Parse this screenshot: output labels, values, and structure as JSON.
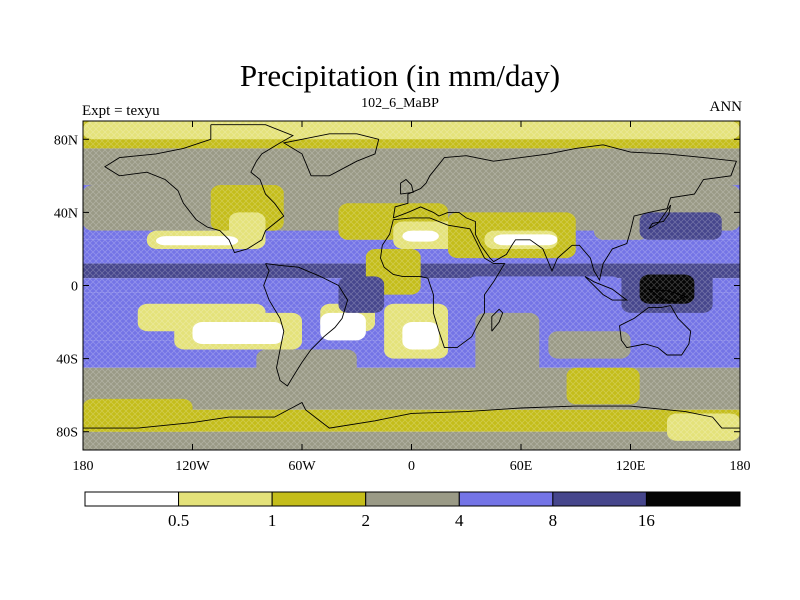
{
  "title": "Precipitation (in mm/day)",
  "subtitle": "102_6_MaBP",
  "left_label": "Expt = texyu",
  "right_label": "ANN",
  "colors": {
    "bin0": "#ffffff",
    "bin1": "#e4e27a",
    "bin2": "#c4bd1a",
    "bin3": "#9a9a86",
    "bin4": "#7474e6",
    "bin5": "#46468c",
    "bin6": "#050505"
  },
  "map": {
    "lon_range": [
      -180,
      180
    ],
    "lat_range": [
      -90,
      90
    ],
    "lon_ticks": [
      {
        "value": -180,
        "label": "180"
      },
      {
        "value": -120,
        "label": "120W"
      },
      {
        "value": -60,
        "label": "60W"
      },
      {
        "value": 0,
        "label": "0"
      },
      {
        "value": 60,
        "label": "60E"
      },
      {
        "value": 120,
        "label": "120E"
      },
      {
        "value": 180,
        "label": "180"
      }
    ],
    "lat_ticks": [
      {
        "value": 80,
        "label": "80N"
      },
      {
        "value": 40,
        "label": "40N"
      },
      {
        "value": 0,
        "label": "0"
      },
      {
        "value": -40,
        "label": "40S"
      },
      {
        "value": -80,
        "label": "80S"
      }
    ],
    "zonal_bands": [
      {
        "lat": [
          75,
          90
        ],
        "level": 2
      },
      {
        "lat": [
          55,
          75
        ],
        "level": 3
      },
      {
        "lat": [
          42,
          55
        ],
        "level": 4
      },
      {
        "lat": [
          25,
          42
        ],
        "level": 4
      },
      {
        "lat": [
          12,
          25
        ],
        "level": 4
      },
      {
        "lat": [
          4,
          12
        ],
        "level": 5
      },
      {
        "lat": [
          -4,
          4
        ],
        "level": 4
      },
      {
        "lat": [
          -12,
          -4
        ],
        "level": 4
      },
      {
        "lat": [
          -30,
          -12
        ],
        "level": 4
      },
      {
        "lat": [
          -45,
          -30
        ],
        "level": 4
      },
      {
        "lat": [
          -55,
          -45
        ],
        "level": 3
      },
      {
        "lat": [
          -68,
          -55
        ],
        "level": 3
      },
      {
        "lat": [
          -80,
          -68
        ],
        "level": 2
      },
      {
        "lat": [
          -90,
          -80
        ],
        "level": 3
      }
    ],
    "regions": [
      {
        "lon": [
          -180,
          180
        ],
        "lat": [
          30,
          55
        ],
        "level": 3
      },
      {
        "lon": [
          -110,
          -70
        ],
        "lat": [
          30,
          55
        ],
        "level": 2
      },
      {
        "lon": [
          -100,
          -80
        ],
        "lat": [
          20,
          40
        ],
        "level": 1
      },
      {
        "lon": [
          -145,
          -85
        ],
        "lat": [
          20,
          30
        ],
        "level": 1
      },
      {
        "lon": [
          -140,
          -95
        ],
        "lat": [
          22,
          27
        ],
        "level": 0
      },
      {
        "lon": [
          -40,
          20
        ],
        "lat": [
          25,
          45
        ],
        "level": 2
      },
      {
        "lon": [
          -10,
          30
        ],
        "lat": [
          20,
          35
        ],
        "level": 1
      },
      {
        "lon": [
          -5,
          15
        ],
        "lat": [
          24,
          30
        ],
        "level": 0
      },
      {
        "lon": [
          20,
          90
        ],
        "lat": [
          15,
          40
        ],
        "level": 2
      },
      {
        "lon": [
          40,
          80
        ],
        "lat": [
          20,
          30
        ],
        "level": 1
      },
      {
        "lon": [
          45,
          80
        ],
        "lat": [
          22,
          28
        ],
        "level": 0
      },
      {
        "lon": [
          100,
          130
        ],
        "lat": [
          25,
          40
        ],
        "level": 3
      },
      {
        "lon": [
          125,
          170
        ],
        "lat": [
          25,
          40
        ],
        "level": 5
      },
      {
        "lon": [
          115,
          165
        ],
        "lat": [
          -15,
          10
        ],
        "level": 5
      },
      {
        "lon": [
          125,
          155
        ],
        "lat": [
          -10,
          6
        ],
        "level": 6
      },
      {
        "lon": [
          30,
          115
        ],
        "lat": [
          -15,
          5
        ],
        "level": 4
      },
      {
        "lon": [
          -150,
          -80
        ],
        "lat": [
          -25,
          -10
        ],
        "level": 1
      },
      {
        "lon": [
          -130,
          -60
        ],
        "lat": [
          -35,
          -15
        ],
        "level": 1
      },
      {
        "lon": [
          -120,
          -70
        ],
        "lat": [
          -32,
          -20
        ],
        "level": 0
      },
      {
        "lon": [
          -50,
          -20
        ],
        "lat": [
          -25,
          -10
        ],
        "level": 1
      },
      {
        "lon": [
          -15,
          20
        ],
        "lat": [
          -40,
          -10
        ],
        "level": 1
      },
      {
        "lon": [
          -5,
          15
        ],
        "lat": [
          -35,
          -20
        ],
        "level": 0
      },
      {
        "lon": [
          -50,
          -25
        ],
        "lat": [
          -30,
          -15
        ],
        "level": 0
      },
      {
        "lon": [
          -25,
          5
        ],
        "lat": [
          -5,
          20
        ],
        "level": 2
      },
      {
        "lon": [
          -40,
          -15
        ],
        "lat": [
          -15,
          5
        ],
        "level": 5
      },
      {
        "lon": [
          35,
          70
        ],
        "lat": [
          -50,
          -15
        ],
        "level": 3
      },
      {
        "lon": [
          75,
          120
        ],
        "lat": [
          -40,
          -25
        ],
        "level": 3
      },
      {
        "lon": [
          85,
          125
        ],
        "lat": [
          -65,
          -45
        ],
        "level": 2
      },
      {
        "lon": [
          -85,
          -30
        ],
        "lat": [
          -62,
          -35
        ],
        "level": 3
      },
      {
        "lon": [
          -180,
          -120
        ],
        "lat": [
          -80,
          -62
        ],
        "level": 2
      },
      {
        "lon": [
          140,
          180
        ],
        "lat": [
          -85,
          -70
        ],
        "level": 1
      },
      {
        "lon": [
          -180,
          180
        ],
        "lat": [
          80,
          90
        ],
        "level": 1
      }
    ],
    "coastlines": [
      [
        [
          -110,
          88
        ],
        [
          -80,
          88
        ],
        [
          -65,
          82
        ],
        [
          -72,
          78
        ],
        [
          -82,
          72
        ],
        [
          -85,
          68
        ],
        [
          -88,
          62
        ],
        [
          -83,
          58
        ],
        [
          -80,
          50
        ],
        [
          -75,
          45
        ],
        [
          -70,
          38
        ],
        [
          -80,
          30
        ],
        [
          -82,
          25
        ],
        [
          -90,
          20
        ],
        [
          -97,
          18
        ],
        [
          -100,
          25
        ],
        [
          -105,
          30
        ],
        [
          -112,
          32
        ],
        [
          -118,
          36
        ],
        [
          -125,
          45
        ],
        [
          -128,
          52
        ],
        [
          -135,
          58
        ],
        [
          -145,
          62
        ],
        [
          -160,
          60
        ],
        [
          -168,
          65
        ],
        [
          -160,
          70
        ],
        [
          -140,
          72
        ],
        [
          -125,
          75
        ],
        [
          -110,
          80
        ],
        [
          -110,
          88
        ]
      ],
      [
        [
          -80,
          12
        ],
        [
          -72,
          11
        ],
        [
          -62,
          10
        ],
        [
          -50,
          5
        ],
        [
          -40,
          0
        ],
        [
          -35,
          -8
        ],
        [
          -38,
          -18
        ],
        [
          -42,
          -23
        ],
        [
          -48,
          -28
        ],
        [
          -55,
          -35
        ],
        [
          -60,
          -42
        ],
        [
          -65,
          -50
        ],
        [
          -68,
          -55
        ],
        [
          -72,
          -52
        ],
        [
          -74,
          -45
        ],
        [
          -72,
          -35
        ],
        [
          -70,
          -25
        ],
        [
          -72,
          -18
        ],
        [
          -78,
          -8
        ],
        [
          -81,
          0
        ],
        [
          -78,
          8
        ],
        [
          -80,
          12
        ]
      ],
      [
        [
          -10,
          36
        ],
        [
          0,
          37
        ],
        [
          10,
          37
        ],
        [
          20,
          33
        ],
        [
          32,
          31
        ],
        [
          35,
          25
        ],
        [
          40,
          15
        ],
        [
          45,
          12
        ],
        [
          51,
          12
        ],
        [
          45,
          2
        ],
        [
          40,
          -5
        ],
        [
          40,
          -15
        ],
        [
          36,
          -22
        ],
        [
          33,
          -28
        ],
        [
          25,
          -34
        ],
        [
          18,
          -34
        ],
        [
          15,
          -25
        ],
        [
          12,
          -15
        ],
        [
          12,
          -5
        ],
        [
          9,
          4
        ],
        [
          5,
          5
        ],
        [
          -5,
          5
        ],
        [
          -10,
          6
        ],
        [
          -15,
          10
        ],
        [
          -17,
          15
        ],
        [
          -16,
          22
        ],
        [
          -12,
          28
        ],
        [
          -10,
          36
        ]
      ],
      [
        [
          -10,
          37
        ],
        [
          -9,
          43
        ],
        [
          -2,
          45
        ],
        [
          -2,
          50
        ],
        [
          5,
          53
        ],
        [
          8,
          56
        ],
        [
          10,
          60
        ],
        [
          18,
          70
        ],
        [
          30,
          71
        ],
        [
          45,
          68
        ],
        [
          60,
          70
        ],
        [
          75,
          72
        ],
        [
          90,
          75
        ],
        [
          105,
          77
        ],
        [
          120,
          73
        ],
        [
          140,
          72
        ],
        [
          160,
          70
        ],
        [
          178,
          68
        ],
        [
          175,
          60
        ],
        [
          160,
          58
        ],
        [
          155,
          50
        ],
        [
          142,
          48
        ],
        [
          140,
          42
        ],
        [
          130,
          40
        ],
        [
          122,
          38
        ],
        [
          120,
          30
        ],
        [
          118,
          23
        ],
        [
          110,
          20
        ],
        [
          105,
          12
        ],
        [
          103,
          3
        ],
        [
          100,
          8
        ],
        [
          98,
          15
        ],
        [
          92,
          22
        ],
        [
          88,
          22
        ],
        [
          80,
          15
        ],
        [
          77,
          8
        ],
        [
          72,
          20
        ],
        [
          65,
          25
        ],
        [
          57,
          25
        ],
        [
          55,
          22
        ],
        [
          52,
          17
        ],
        [
          45,
          13
        ],
        [
          43,
          15
        ],
        [
          38,
          22
        ],
        [
          35,
          28
        ],
        [
          35,
          35
        ],
        [
          30,
          37
        ],
        [
          26,
          40
        ],
        [
          20,
          40
        ],
        [
          15,
          38
        ],
        [
          12,
          40
        ],
        [
          5,
          43
        ],
        [
          -2,
          40
        ],
        [
          -10,
          37
        ]
      ],
      [
        [
          114,
          -22
        ],
        [
          122,
          -18
        ],
        [
          130,
          -12
        ],
        [
          137,
          -12
        ],
        [
          142,
          -11
        ],
        [
          146,
          -18
        ],
        [
          153,
          -25
        ],
        [
          152,
          -32
        ],
        [
          148,
          -38
        ],
        [
          140,
          -38
        ],
        [
          135,
          -34
        ],
        [
          128,
          -32
        ],
        [
          118,
          -34
        ],
        [
          115,
          -30
        ],
        [
          114,
          -22
        ]
      ],
      [
        [
          -180,
          -78
        ],
        [
          -150,
          -78
        ],
        [
          -120,
          -75
        ],
        [
          -100,
          -72
        ],
        [
          -75,
          -72
        ],
        [
          -60,
          -64
        ],
        [
          -58,
          -68
        ],
        [
          -45,
          -78
        ],
        [
          -20,
          -74
        ],
        [
          0,
          -70
        ],
        [
          30,
          -69
        ],
        [
          60,
          -67
        ],
        [
          90,
          -66
        ],
        [
          120,
          -66
        ],
        [
          150,
          -69
        ],
        [
          165,
          -72
        ],
        [
          170,
          -78
        ],
        [
          180,
          -78
        ]
      ],
      [
        [
          -55,
          60
        ],
        [
          -45,
          60
        ],
        [
          -30,
          68
        ],
        [
          -20,
          72
        ],
        [
          -18,
          80
        ],
        [
          -30,
          83
        ],
        [
          -45,
          83
        ],
        [
          -60,
          80
        ],
        [
          -70,
          78
        ],
        [
          -60,
          72
        ],
        [
          -55,
          60
        ]
      ],
      [
        [
          44,
          -25
        ],
        [
          48,
          -20
        ],
        [
          50,
          -15
        ],
        [
          48,
          -13
        ],
        [
          44,
          -17
        ],
        [
          44,
          -25
        ]
      ],
      [
        [
          130,
          31
        ],
        [
          132,
          34
        ],
        [
          138,
          35
        ],
        [
          141,
          39
        ],
        [
          142,
          44
        ],
        [
          140,
          41
        ],
        [
          135,
          34
        ],
        [
          130,
          31
        ]
      ],
      [
        [
          -6,
          50
        ],
        [
          1,
          51
        ],
        [
          0,
          55
        ],
        [
          -3,
          58
        ],
        [
          -6,
          56
        ],
        [
          -6,
          50
        ]
      ],
      [
        [
          95,
          5
        ],
        [
          105,
          -5
        ],
        [
          110,
          -8
        ],
        [
          118,
          -8
        ],
        [
          110,
          -2
        ],
        [
          100,
          2
        ],
        [
          95,
          5
        ]
      ],
      [
        [
          130,
          -2
        ],
        [
          141,
          -3
        ],
        [
          150,
          -6
        ],
        [
          145,
          -9
        ],
        [
          138,
          -8
        ],
        [
          130,
          -2
        ]
      ]
    ]
  },
  "colorbar": {
    "labels": [
      "0.5",
      "1",
      "2",
      "4",
      "8",
      "16"
    ],
    "levels": [
      0,
      1,
      2,
      3,
      4,
      5,
      6
    ]
  }
}
